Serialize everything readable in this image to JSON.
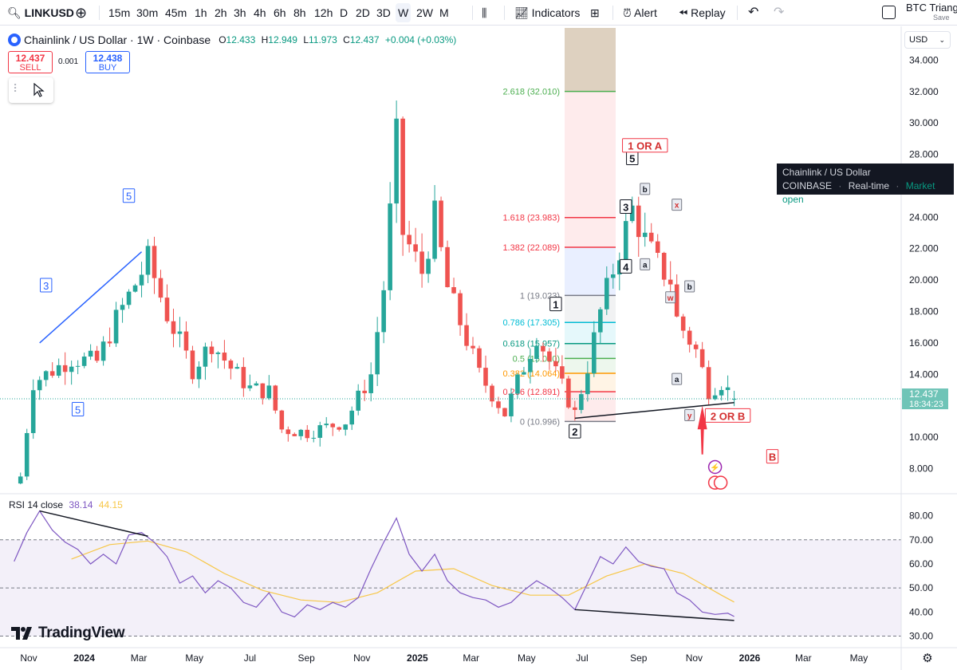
{
  "toolbar": {
    "symbol": "LINKUSD",
    "timeframes": [
      "15m",
      "30m",
      "45m",
      "1h",
      "2h",
      "3h",
      "4h",
      "6h",
      "8h",
      "12h",
      "D",
      "2D",
      "3D",
      "W",
      "2W",
      "M"
    ],
    "active_timeframe": "W",
    "indicators_label": "Indicators",
    "alert_label": "Alert",
    "replay_label": "Replay",
    "layout_name": "BTC Triangl",
    "save_label": "Save"
  },
  "legend": {
    "title": "Chainlink / US Dollar · 1W · Coinbase",
    "open_label": "O",
    "open": "12.433",
    "high_label": "H",
    "high": "12.949",
    "low_label": "L",
    "low": "11.973",
    "close_label": "C",
    "close": "12.437",
    "change": "+0.004 (+0.03%)"
  },
  "trade": {
    "sell_price": "12.437",
    "sell_label": "SELL",
    "spread": "0.001",
    "buy_price": "12.438",
    "buy_label": "BUY"
  },
  "tooltip": {
    "name": "Chainlink / US Dollar",
    "exchange": "COINBASE",
    "feed": "Real-time",
    "status": "Market open"
  },
  "currency": "USD",
  "last_price": {
    "price": "12.437",
    "countdown": "18:34:23"
  },
  "rsi_legend": {
    "label": "RSI 14 close",
    "rsi": "38.14",
    "ma": "44.15"
  },
  "brand": "TradingView",
  "colors": {
    "up": "#26a69a",
    "down": "#ef5350",
    "rsi": "#7e57c2",
    "rsi_ma": "#f7c748",
    "fib_band": "#f7525f",
    "fib_top_band": "#b0916a",
    "wave_blue": "#2962ff",
    "wave_red": "#d32f2f"
  },
  "chart_data": [
    {
      "type": "candlestick",
      "title": "Chainlink / US Dollar · 1W · Coinbase",
      "y_axis_ticks": [
        8,
        10,
        12,
        14,
        16,
        18,
        20,
        22,
        24,
        26,
        28,
        30,
        32,
        34
      ],
      "y_tick_labels": [
        "8.000",
        "10.000",
        "12.000",
        "14.000",
        "16.000",
        "18.000",
        "20.000",
        "22.000",
        "24.000",
        "26.000",
        "28.000",
        "30.000",
        "32.000",
        "34.000"
      ],
      "ylim": [
        6.6,
        35.8
      ],
      "x_tick_labels": [
        "Nov",
        "2024",
        "Mar",
        "May",
        "Jul",
        "Sep",
        "Nov",
        "2025",
        "Mar",
        "May",
        "Jul",
        "Sep",
        "Nov",
        "2026",
        "Mar",
        "May"
      ],
      "close_path": [
        [
          "2023-10-23",
          7.5
        ],
        [
          "2023-11-06",
          13.5
        ],
        [
          "2023-11-20",
          14.0
        ],
        [
          "2023-12-18",
          15.0
        ],
        [
          "2024-01-15",
          14.8
        ],
        [
          "2024-02-05",
          17.5
        ],
        [
          "2024-03-04",
          20.5
        ],
        [
          "2024-03-11",
          21.3
        ],
        [
          "2024-04-01",
          17.8
        ],
        [
          "2024-04-29",
          14.3
        ],
        [
          "2024-05-20",
          16.0
        ],
        [
          "2024-06-10",
          14.4
        ],
        [
          "2024-07-01",
          13.1
        ],
        [
          "2024-07-22",
          12.9
        ],
        [
          "2024-08-05",
          10.5
        ],
        [
          "2024-09-02",
          10.3
        ],
        [
          "2024-10-14",
          11.0
        ],
        [
          "2024-11-11",
          14.0
        ],
        [
          "2024-11-25",
          19.5
        ],
        [
          "2024-12-09",
          29.0
        ],
        [
          "2024-12-16",
          23.0
        ],
        [
          "2025-01-06",
          20.5
        ],
        [
          "2025-01-20",
          24.0
        ],
        [
          "2025-02-03",
          19.5
        ],
        [
          "2025-03-10",
          14.0
        ],
        [
          "2025-04-07",
          11.5
        ],
        [
          "2025-04-28",
          14.5
        ],
        [
          "2025-05-12",
          16.5
        ],
        [
          "2025-06-09",
          13.2
        ],
        [
          "2025-06-23",
          11.5
        ],
        [
          "2025-07-07",
          14.5
        ],
        [
          "2025-07-21",
          18.0
        ],
        [
          "2025-08-11",
          22.0
        ],
        [
          "2025-08-25",
          24.5
        ],
        [
          "2025-09-08",
          22.5
        ],
        [
          "2025-09-22",
          21.0
        ],
        [
          "2025-10-06",
          20.0
        ],
        [
          "2025-10-13",
          17.5
        ],
        [
          "2025-11-03",
          15.5
        ],
        [
          "2025-11-17",
          13.0
        ],
        [
          "2025-12-01",
          13.5
        ],
        [
          "2025-12-15",
          12.437
        ]
      ],
      "last": {
        "open": 12.433,
        "high": 12.949,
        "low": 11.973,
        "close": 12.437
      },
      "fibonacci": [
        {
          "level": "0",
          "price": 10.996,
          "label": "0 (10.996)"
        },
        {
          "level": "0.236",
          "price": 12.891,
          "label": "0.236 (12.891)"
        },
        {
          "level": "0.382",
          "price": 14.064,
          "label": "0.382 (14.064)"
        },
        {
          "level": "0.5",
          "price": 15.01,
          "label": "0.5 (15.010)"
        },
        {
          "level": "0.618",
          "price": 15.957,
          "label": "0.618 (15.957)"
        },
        {
          "level": "0.786",
          "price": 17.305,
          "label": "0.786 (17.305)"
        },
        {
          "level": "1",
          "price": 19.023,
          "label": "1 (19.023)"
        },
        {
          "level": "1.382",
          "price": 22.089,
          "label": "1.382 (22.089)"
        },
        {
          "level": "1.618",
          "price": 23.983,
          "label": "1.618 (23.983)"
        },
        {
          "level": "2.618",
          "price": 32.01,
          "label": "2.618 (32.010)"
        }
      ],
      "wave_labels": [
        {
          "text": "3",
          "date": "2023-11-20",
          "price": 19.5,
          "style": "blue"
        },
        {
          "text": "5",
          "date": "2024-02-19",
          "price": 25.2,
          "style": "blue"
        },
        {
          "text": "5",
          "date": "2023-12-25",
          "price": 11.6,
          "style": "blue"
        },
        {
          "text": "1",
          "date": "2025-06-02",
          "price": 18.3,
          "style": "black"
        },
        {
          "text": "2",
          "date": "2025-06-23",
          "price": 10.2,
          "style": "black"
        },
        {
          "text": "3",
          "date": "2025-08-18",
          "price": 24.5,
          "style": "black"
        },
        {
          "text": "4",
          "date": "2025-08-18",
          "price": 20.7,
          "style": "black"
        },
        {
          "text": "5",
          "date": "2025-08-25",
          "price": 27.6,
          "style": "black"
        },
        {
          "text": "1 OR A",
          "date": "2025-09-08",
          "price": 28.4,
          "style": "red"
        },
        {
          "text": "2 OR B",
          "date": "2025-12-08",
          "price": 11.2,
          "style": "red"
        },
        {
          "text": "B",
          "date": "2026-01-26",
          "price": 8.6,
          "style": "red"
        },
        {
          "text": "b",
          "date": "2025-09-08",
          "price": 25.7,
          "style": "small"
        },
        {
          "text": "x",
          "date": "2025-10-13",
          "price": 24.7,
          "style": "small-red"
        },
        {
          "text": "a",
          "date": "2025-09-08",
          "price": 20.9,
          "style": "small"
        },
        {
          "text": "w",
          "date": "2025-10-06",
          "price": 18.8,
          "style": "small-red"
        },
        {
          "text": "b",
          "date": "2025-10-27",
          "price": 19.5,
          "style": "small"
        },
        {
          "text": "a",
          "date": "2025-10-13",
          "price": 13.6,
          "style": "small"
        },
        {
          "text": "y",
          "date": "2025-10-27",
          "price": 11.3,
          "style": "small-red"
        }
      ]
    },
    {
      "type": "line",
      "title": "RSI 14 close",
      "y_axis_ticks": [
        30,
        40,
        50,
        60,
        70,
        80
      ],
      "y_tick_labels": [
        "30.00",
        "40.00",
        "50.00",
        "60.00",
        "70.00",
        "80.00"
      ],
      "ylim": [
        25.2,
        85.5
      ],
      "bands": [
        70,
        50,
        30
      ],
      "series": [
        {
          "name": "RSI",
          "points": [
            [
              "2023-10-16",
              61
            ],
            [
              "2023-10-30",
              73
            ],
            [
              "2023-11-13",
              82
            ],
            [
              "2023-11-27",
              74
            ],
            [
              "2023-12-11",
              69
            ],
            [
              "2023-12-25",
              66
            ],
            [
              "2024-01-08",
              60
            ],
            [
              "2024-01-22",
              64
            ],
            [
              "2024-02-05",
              60
            ],
            [
              "2024-02-19",
              72
            ],
            [
              "2024-03-04",
              73
            ],
            [
              "2024-03-18",
              69
            ],
            [
              "2024-04-01",
              63
            ],
            [
              "2024-04-15",
              52
            ],
            [
              "2024-04-29",
              55
            ],
            [
              "2024-05-13",
              48
            ],
            [
              "2024-05-27",
              53
            ],
            [
              "2024-06-10",
              50
            ],
            [
              "2024-06-24",
              44
            ],
            [
              "2024-07-08",
              42
            ],
            [
              "2024-07-22",
              48
            ],
            [
              "2024-08-05",
              40
            ],
            [
              "2024-08-19",
              38
            ],
            [
              "2024-09-02",
              43
            ],
            [
              "2024-09-16",
              41
            ],
            [
              "2024-09-30",
              44
            ],
            [
              "2024-10-14",
              42
            ],
            [
              "2024-10-28",
              46
            ],
            [
              "2024-11-11",
              58
            ],
            [
              "2024-11-25",
              69
            ],
            [
              "2024-12-09",
              79
            ],
            [
              "2024-12-23",
              64
            ],
            [
              "2025-01-06",
              57
            ],
            [
              "2025-01-20",
              64
            ],
            [
              "2025-02-03",
              53
            ],
            [
              "2025-02-17",
              48
            ],
            [
              "2025-03-03",
              46
            ],
            [
              "2025-03-17",
              45
            ],
            [
              "2025-03-31",
              42
            ],
            [
              "2025-04-14",
              44
            ],
            [
              "2025-04-28",
              49
            ],
            [
              "2025-05-12",
              53
            ],
            [
              "2025-05-26",
              50
            ],
            [
              "2025-06-09",
              46
            ],
            [
              "2025-06-23",
              41
            ],
            [
              "2025-07-07",
              52
            ],
            [
              "2025-07-21",
              63
            ],
            [
              "2025-08-04",
              60
            ],
            [
              "2025-08-18",
              67
            ],
            [
              "2025-09-01",
              61
            ],
            [
              "2025-09-15",
              59
            ],
            [
              "2025-09-29",
              58
            ],
            [
              "2025-10-13",
              48
            ],
            [
              "2025-10-27",
              45
            ],
            [
              "2025-11-10",
              40
            ],
            [
              "2025-11-24",
              39
            ],
            [
              "2025-12-08",
              39.5
            ],
            [
              "2025-12-15",
              38.14
            ]
          ]
        },
        {
          "name": "MA",
          "points": [
            [
              "2023-12-18",
              62
            ],
            [
              "2024-01-29",
              68
            ],
            [
              "2024-03-11",
              69.5
            ],
            [
              "2024-04-22",
              65
            ],
            [
              "2024-06-03",
              56
            ],
            [
              "2024-07-15",
              49
            ],
            [
              "2024-08-26",
              45
            ],
            [
              "2024-10-07",
              44
            ],
            [
              "2024-11-18",
              48
            ],
            [
              "2024-12-30",
              57
            ],
            [
              "2025-02-10",
              58
            ],
            [
              "2025-03-24",
              51
            ],
            [
              "2025-05-05",
              47
            ],
            [
              "2025-06-16",
              47
            ],
            [
              "2025-07-28",
              55
            ],
            [
              "2025-09-08",
              60
            ],
            [
              "2025-10-20",
              56
            ],
            [
              "2025-12-01",
              47
            ],
            [
              "2025-12-15",
              44.15
            ]
          ]
        }
      ]
    }
  ]
}
